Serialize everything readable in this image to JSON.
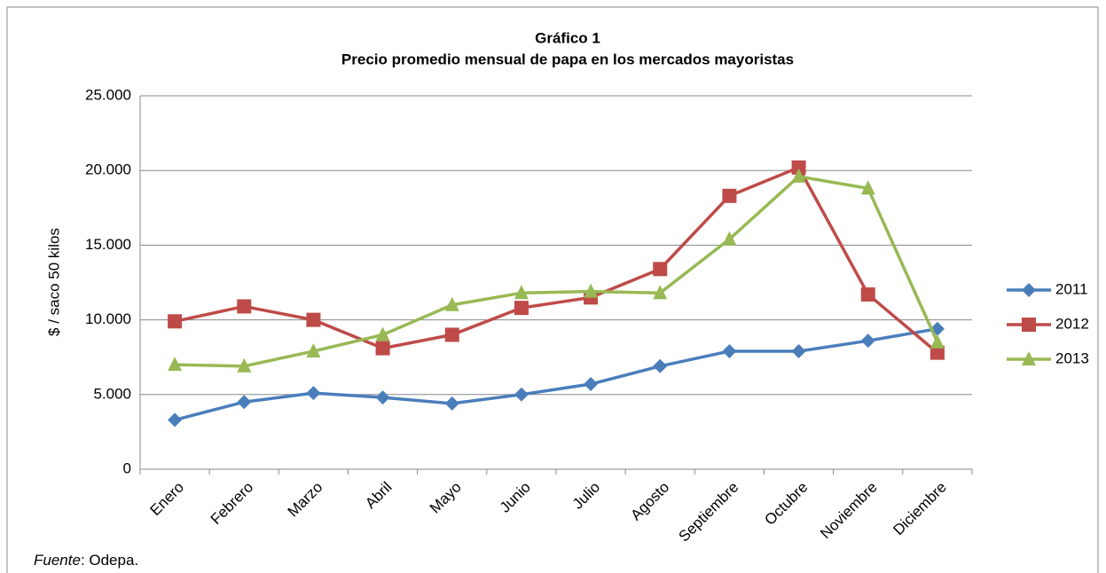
{
  "chart_data": {
    "type": "line",
    "title": "Gráfico 1",
    "subtitle": "Precio promedio mensual de papa en los mercados mayoristas",
    "y_label": "$ / saco 50 kilos",
    "categories": [
      "Enero",
      "Febrero",
      "Marzo",
      "Abril",
      "Mayo",
      "Junio",
      "Julio",
      "Agosto",
      "Septiembre",
      "Octubre",
      "Noviembre",
      "Diciembre"
    ],
    "series": [
      {
        "name": "2011",
        "color": "#4a7ebb",
        "marker": "diamond",
        "values": [
          3300,
          4500,
          5100,
          4800,
          4400,
          5000,
          5700,
          6900,
          7900,
          7900,
          8600,
          9400
        ]
      },
      {
        "name": "2012",
        "color": "#be4b48",
        "marker": "square",
        "values": [
          9900,
          10900,
          10000,
          8100,
          9000,
          10800,
          11500,
          13400,
          18300,
          20200,
          11700,
          7800
        ]
      },
      {
        "name": "2013",
        "color": "#98b954",
        "marker": "triangle",
        "values": [
          7000,
          6900,
          7900,
          9000,
          11000,
          11800,
          11900,
          11800,
          15400,
          19600,
          18800,
          8500
        ]
      }
    ],
    "ylim": [
      0,
      25000
    ],
    "yticks": [
      0,
      {
        "value": 5000,
        "label": "5.000"
      },
      {
        "value": 10000,
        "label": "10.000"
      },
      {
        "value": 15000,
        "label": "15.000"
      },
      {
        "value": 20000,
        "label": "20.000"
      },
      {
        "value": 25000,
        "label": "25.000"
      }
    ],
    "grid": true,
    "legend": "right",
    "source_label": "Fuente",
    "source": ": Odepa."
  }
}
